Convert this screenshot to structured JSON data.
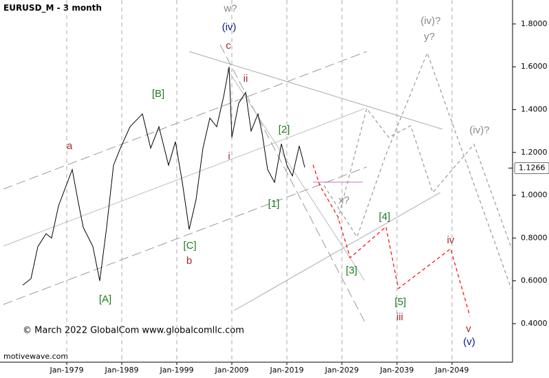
{
  "chart_data": {
    "type": "line",
    "title": "EURUSD_M - 3 month",
    "copyright": "© March 2022 GlobalCom www.globalcomllc.com",
    "source": "motivewave.com",
    "xlim": [
      1967.5,
      2060
    ],
    "ylim": [
      0.22,
      1.912
    ],
    "xticks": [
      {
        "value": 1979,
        "label": "Jan-1979"
      },
      {
        "value": 1989,
        "label": "Jan-1989"
      },
      {
        "value": 1999,
        "label": "Jan-1999"
      },
      {
        "value": 2009,
        "label": "Jan-2009"
      },
      {
        "value": 2019,
        "label": "Jan-2019"
      },
      {
        "value": 2029,
        "label": "Jan-2029"
      },
      {
        "value": 2039,
        "label": "Jan-2039"
      },
      {
        "value": 2049,
        "label": "Jan-2049"
      }
    ],
    "yticks": [
      {
        "value": 0.4,
        "label": "0.4000"
      },
      {
        "value": 0.6,
        "label": "0.6000"
      },
      {
        "value": 0.8,
        "label": "0.8000"
      },
      {
        "value": 1.0,
        "label": "1.0000"
      },
      {
        "value": 1.2,
        "label": "1.2000"
      },
      {
        "value": 1.4,
        "label": "1.4000"
      },
      {
        "value": 1.6,
        "label": "1.6000"
      },
      {
        "value": 1.8,
        "label": "1.8000"
      }
    ],
    "grid": true,
    "last_price": 1.1266,
    "series": [
      {
        "color": "#000000",
        "style": "solid",
        "x": [
          1971,
          1972.5,
          1973.75,
          1975.25,
          1976.25,
          1977.5,
          1980,
          1981,
          1982,
          1983.75,
          1985,
          1986.25,
          1987.5,
          1988.75,
          1990.5,
          1992.75,
          1994.25,
          1995.75,
          1997.5,
          1998.75,
          2000,
          2001.25,
          2002.5,
          2003.75,
          2005,
          2006.25,
          2007.5,
          2008.5,
          2009,
          2010.25,
          2011.5,
          2012.5,
          2013.75,
          2014.5,
          2015.5,
          2016.75,
          2018,
          2019,
          2020,
          2021.25,
          2022.25
        ],
        "values": [
          0.58,
          0.61,
          0.76,
          0.82,
          0.8,
          0.95,
          1.12,
          0.98,
          0.85,
          0.76,
          0.6,
          0.85,
          1.14,
          1.22,
          1.32,
          1.38,
          1.22,
          1.32,
          1.14,
          1.25,
          1.06,
          0.84,
          0.98,
          1.22,
          1.36,
          1.32,
          1.46,
          1.6,
          1.27,
          1.43,
          1.48,
          1.3,
          1.38,
          1.29,
          1.12,
          1.06,
          1.24,
          1.14,
          1.09,
          1.23,
          1.13
        ]
      },
      {
        "color": "#ff0000",
        "style": "dashed",
        "x": [
          2023.75,
          2025,
          2028.25,
          2030.5,
          2037,
          2039.25,
          2048.75,
          2052.25
        ],
        "values": [
          1.142,
          1.045,
          0.9,
          0.708,
          0.853,
          0.564,
          0.75,
          0.435
        ]
      },
      {
        "color": "#999999",
        "style": "dashed",
        "x": [
          2028.25,
          2033.5,
          2037.5,
          2041.5,
          2045.5,
          2053,
          2059.75
        ],
        "values": [
          0.885,
          1.405,
          1.27,
          1.325,
          1.013,
          1.238,
          0.756
        ]
      },
      {
        "color": "#999999",
        "style": "dashed",
        "x": [
          2025.75,
          2031.75,
          2037,
          2044.5,
          2059.75
        ],
        "values": [
          1.045,
          0.805,
          1.19,
          1.665,
          0.564
        ]
      }
    ],
    "annotations": [
      {
        "text": "a",
        "color": "#a52a2a"
      },
      {
        "text": "[A]",
        "color": "#1e7a1e"
      },
      {
        "text": "[B]",
        "color": "#1e7a1e"
      },
      {
        "text": "[C]",
        "color": "#1e7a1e"
      },
      {
        "text": "b",
        "color": "#a52a2a"
      },
      {
        "text": "c",
        "color": "#a52a2a"
      },
      {
        "text": "(iv)",
        "color": "#0a1a8a"
      },
      {
        "text": "w?",
        "color": "#888888"
      },
      {
        "text": "ii",
        "color": "#a52a2a"
      },
      {
        "text": "i",
        "color": "#a52a2a"
      },
      {
        "text": "[1]",
        "color": "#1e7a1e"
      },
      {
        "text": "[2]",
        "color": "#1e7a1e"
      },
      {
        "text": "x?",
        "color": "#888888"
      },
      {
        "text": "[3]",
        "color": "#1e7a1e"
      },
      {
        "text": "[4]",
        "color": "#1e7a1e"
      },
      {
        "text": "[5]",
        "color": "#1e7a1e"
      },
      {
        "text": "iii",
        "color": "#a52a2a"
      },
      {
        "text": "iv",
        "color": "#a52a2a"
      },
      {
        "text": "v",
        "color": "#a52a2a"
      },
      {
        "text": "(v)",
        "color": "#0a1a8a"
      },
      {
        "text": "(iv)?",
        "color": "#888888"
      },
      {
        "text": "y?",
        "color": "#888888"
      },
      {
        "text": "(iv)?",
        "color": "#888888"
      }
    ]
  }
}
